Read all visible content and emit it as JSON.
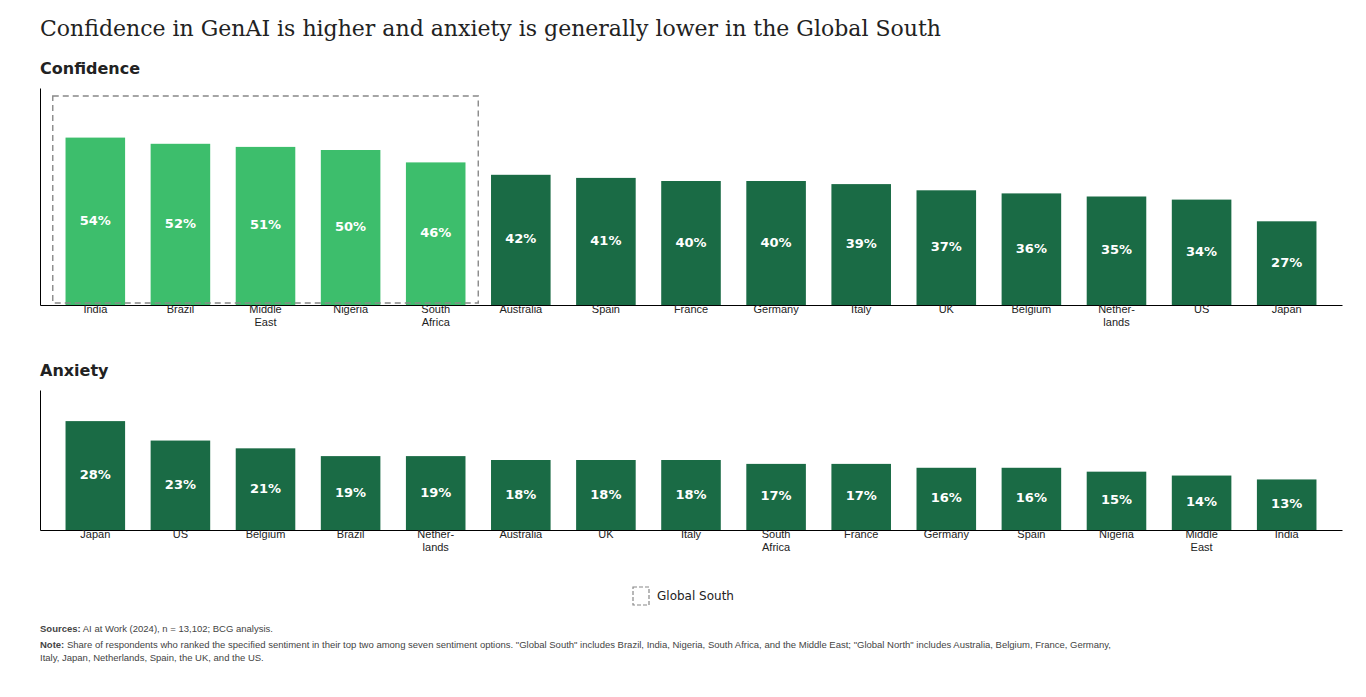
{
  "title": "Confidence in GenAI is higher and anxiety is generally lower in the Global South",
  "annotations": [
    "Sources:",
    " AI at Work (2024), n = 13,102; BCG analysis.",
    "Note:",
    " Share of respondents who ranked the specified sentiment in their top two among seven sentiment options. \"Global South\" includes Brazil, India, Nigeria, South Africa, and the Middle East; \"Global North\" includes Australia, Belgium, France, Germany,\nItaly, Japan, Netherlands, Spain, the UK, and the US."
  ],
  "chart_data": [
    {
      "type": "bar",
      "title": "Confidence",
      "categories": [
        "India",
        "Brazil",
        "Middle\nEast",
        "Nigeria",
        "South\nAfrica",
        "Australia",
        "Spain",
        "France",
        "Germany",
        "Italy",
        "UK",
        "Belgium",
        "Nether-\nlands",
        "US",
        "Japan"
      ],
      "values": [
        54,
        52,
        51,
        50,
        46,
        42,
        41,
        40,
        40,
        39,
        37,
        36,
        35,
        34,
        27
      ],
      "value_labels": [
        "54%",
        "52%",
        "51%",
        "50%",
        "46%",
        "42%",
        "41%",
        "40%",
        "40%",
        "39%",
        "37%",
        "36%",
        "35%",
        "34%",
        "27%"
      ],
      "colors": [
        "#3dbe6c",
        "#3dbe6c",
        "#3dbe6c",
        "#3dbe6c",
        "#3dbe6c",
        "#1a6b45",
        "#1a6b45",
        "#1a6b45",
        "#1a6b45",
        "#1a6b45",
        "#1a6b45",
        "#1a6b45",
        "#1a6b45",
        "#1a6b45",
        "#1a6b45"
      ],
      "ylim": [
        0,
        70
      ],
      "tick_labels": "x",
      "data_labels": true,
      "annotations": [
        "Global South"
      ]
    },
    {
      "type": "bar",
      "title": "Anxiety",
      "categories": [
        "Japan",
        "US",
        "Belgium",
        "Brazil",
        "Nether-\nlands",
        "Australia",
        "UK",
        "Italy",
        "South\nAfrica",
        "France",
        "Germany",
        "Spain",
        "Nigeria",
        "Middle\nEast",
        "India"
      ],
      "values": [
        28,
        23,
        21,
        19,
        19,
        18,
        18,
        18,
        17,
        17,
        16,
        16,
        15,
        14,
        13
      ],
      "value_labels": [
        "28%",
        "23%",
        "21%",
        "19%",
        "19%",
        "18%",
        "18%",
        "18%",
        "17%",
        "17%",
        "16%",
        "16%",
        "15%",
        "14%",
        "13%"
      ],
      "color": "#1a6b45",
      "ylim": [
        0,
        36
      ],
      "tick_labels": "x",
      "data_labels": true
    }
  ]
}
